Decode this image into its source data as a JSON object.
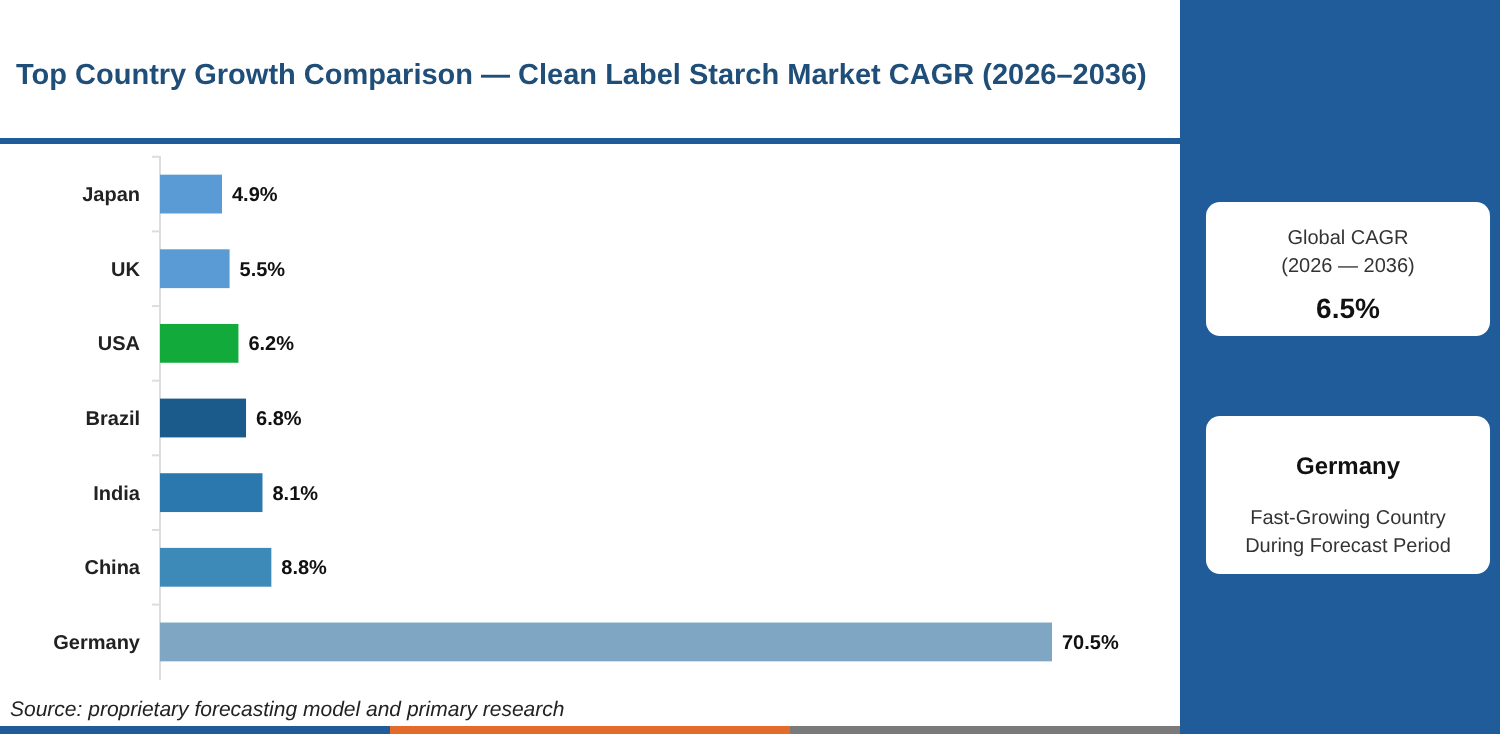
{
  "chart_data": {
    "type": "bar",
    "orientation": "horizontal",
    "title": "Top Country Growth Comparison — Clean Label Starch Market CAGR (2026–2036)",
    "categories": [
      "Japan",
      "UK",
      "USA",
      "Brazil",
      "India",
      "China",
      "Germany"
    ],
    "values": [
      4.9,
      5.5,
      6.2,
      6.8,
      8.1,
      8.8,
      70.5
    ],
    "colors": [
      "#5b9bd5",
      "#5b9bd5",
      "#13aa3c",
      "#1a5b8c",
      "#2a78ae",
      "#3d89b8",
      "#7fa7c3"
    ],
    "value_labels": [
      "4.9%",
      "5.5%",
      "6.2%",
      "6.8%",
      "8.1%",
      "8.8%",
      "70.5%"
    ],
    "annotations": [
      "Source: proprietary forecasting model and primary research",
      "Global CAGR",
      "(2026 — 2036)",
      "6.5%",
      "Germany",
      "Fast-Growing Country",
      "During Forecast Period"
    ]
  }
}
